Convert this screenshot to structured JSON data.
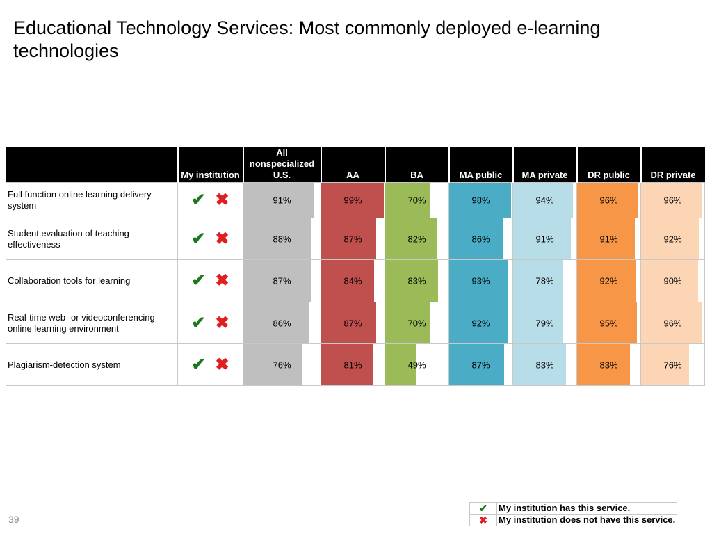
{
  "title": "Educational Technology Services: Most commonly deployed e-learning technologies",
  "page_number": "39",
  "icons": {
    "check": "✔",
    "cross": "✖"
  },
  "colors": {
    "all": "#bfbfbf",
    "aa": "#c0504d",
    "ba": "#9bbb59",
    "ma_public": "#4bacc6",
    "ma_private": "#b7dee8",
    "dr_public": "#f79646",
    "dr_private": "#fcd5b4",
    "check": "#1a7a1a",
    "cross": "#e02020"
  },
  "legend": {
    "has": "My institution has this service.",
    "has_not": "My institution does not have this service."
  },
  "chart_data": {
    "type": "table",
    "title": "Educational Technology Services: Most commonly deployed e-learning technologies",
    "columns": [
      "",
      "My institution",
      "All nonspecialized U.S.",
      "AA",
      "BA",
      "MA public",
      "MA private",
      "DR public",
      "DR private"
    ],
    "rows": [
      {
        "label": "Full function online learning delivery system",
        "values": [
          91,
          99,
          70,
          98,
          94,
          96,
          96
        ]
      },
      {
        "label": "Student evaluation of teaching effectiveness",
        "values": [
          88,
          87,
          82,
          86,
          91,
          91,
          92
        ]
      },
      {
        "label": "Collaboration tools for learning",
        "values": [
          87,
          84,
          83,
          93,
          78,
          92,
          90
        ]
      },
      {
        "label": "Real-time web- or videoconferencing online learning environment",
        "values": [
          86,
          87,
          70,
          92,
          79,
          95,
          96
        ]
      },
      {
        "label": "Plagiarism-detection system",
        "values": [
          76,
          81,
          49,
          87,
          83,
          83,
          76
        ]
      }
    ],
    "unit": "%"
  }
}
